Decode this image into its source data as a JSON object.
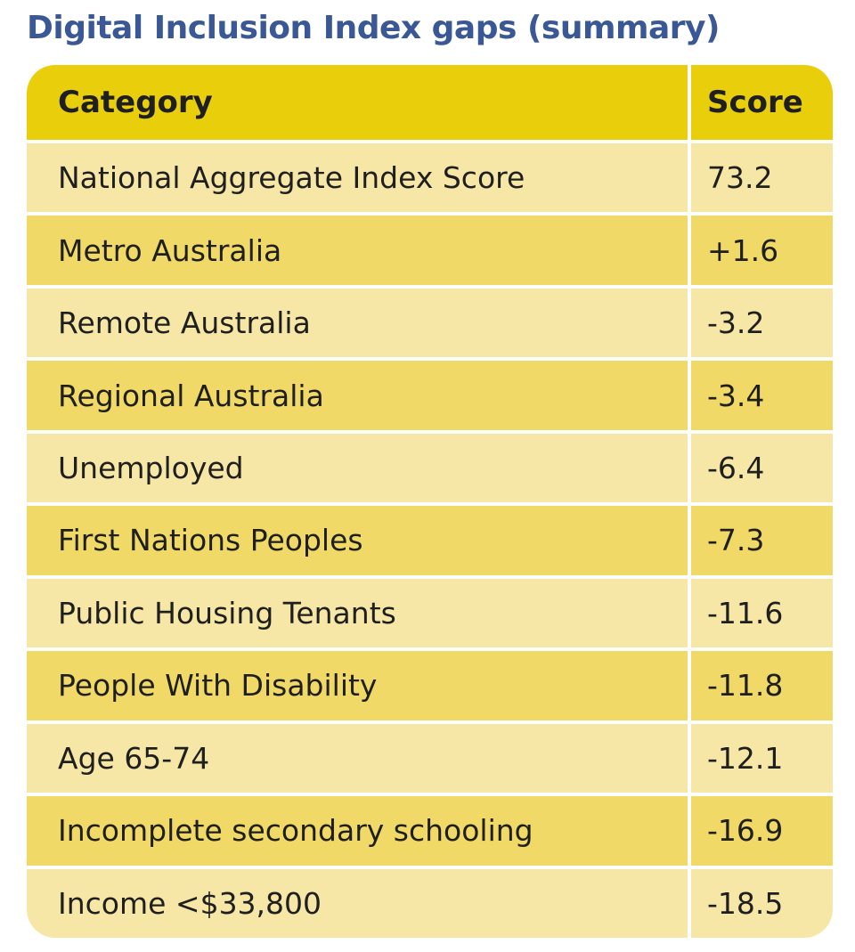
{
  "title": "Digital Inclusion Index gaps (summary)",
  "table": {
    "headers": {
      "category": "Category",
      "score": "Score"
    },
    "rows": [
      {
        "category": "National Aggregate Index Score",
        "score": "73.2"
      },
      {
        "category": "Metro Australia",
        "score": "+1.6"
      },
      {
        "category": "Remote Australia",
        "score": "-3.2"
      },
      {
        "category": "Regional Australia",
        "score": "-3.4"
      },
      {
        "category": "Unemployed",
        "score": "-6.4"
      },
      {
        "category": "First Nations Peoples",
        "score": "-7.3"
      },
      {
        "category": "Public Housing Tenants",
        "score": "-11.6"
      },
      {
        "category": "People With Disability",
        "score": "-11.8"
      },
      {
        "category": "Age 65-74",
        "score": "-12.1"
      },
      {
        "category": "Incomplete secondary schooling",
        "score": "-16.9"
      },
      {
        "category": "Income <$33,800",
        "score": "-18.5"
      }
    ]
  },
  "colors": {
    "title": "#3a5796",
    "header_bg": "#e9ce0c",
    "row_light": "#f6e7a6",
    "row_dark": "#f0d966"
  }
}
